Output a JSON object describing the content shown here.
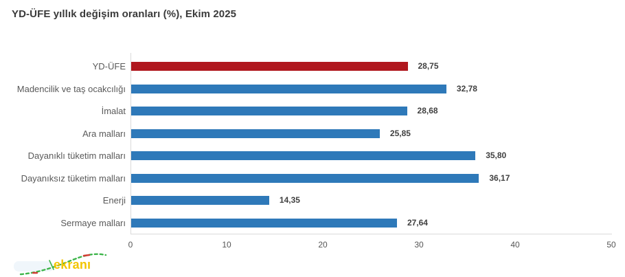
{
  "chart_data": {
    "type": "bar",
    "orientation": "horizontal",
    "title": "YD-ÜFE yıllık değişim oranları (%), Ekim 2025",
    "categories": [
      "YD-ÜFE",
      "Madencilik ve taş ocakcılığı",
      "İmalat",
      "Ara malları",
      "Dayanıklı tüketim malları",
      "Dayanıksız tüketim malları",
      "Enerji",
      "Sermaye malları"
    ],
    "values": [
      28.75,
      32.78,
      28.68,
      25.85,
      35.8,
      36.17,
      14.35,
      27.64
    ],
    "value_labels": [
      "28,75",
      "32,78",
      "28,68",
      "25,85",
      "35,80",
      "36,17",
      "14,35",
      "27,64"
    ],
    "bar_colors": [
      "#b0171e",
      "#2e79b9",
      "#2e79b9",
      "#2e79b9",
      "#2e79b9",
      "#2e79b9",
      "#2e79b9",
      "#2e79b9"
    ],
    "xlim": [
      0,
      50
    ],
    "x_ticks": [
      "0",
      "10",
      "20",
      "30",
      "40",
      "50"
    ],
    "grid": false,
    "legend": false,
    "xlabel": "",
    "ylabel": ""
  },
  "colors": {
    "highlight_bar": "#b0171e",
    "bar": "#2e79b9",
    "axis_line": "#d9d9d9",
    "category_label": "#595959",
    "value_label": "#3f3f3f",
    "title": "#3a3a3a",
    "watermark_text": "#f2c500",
    "watermark_trend_up": "#3db54a",
    "watermark_trend_down": "#d23b31"
  },
  "watermark": {
    "text": "ekranı"
  }
}
